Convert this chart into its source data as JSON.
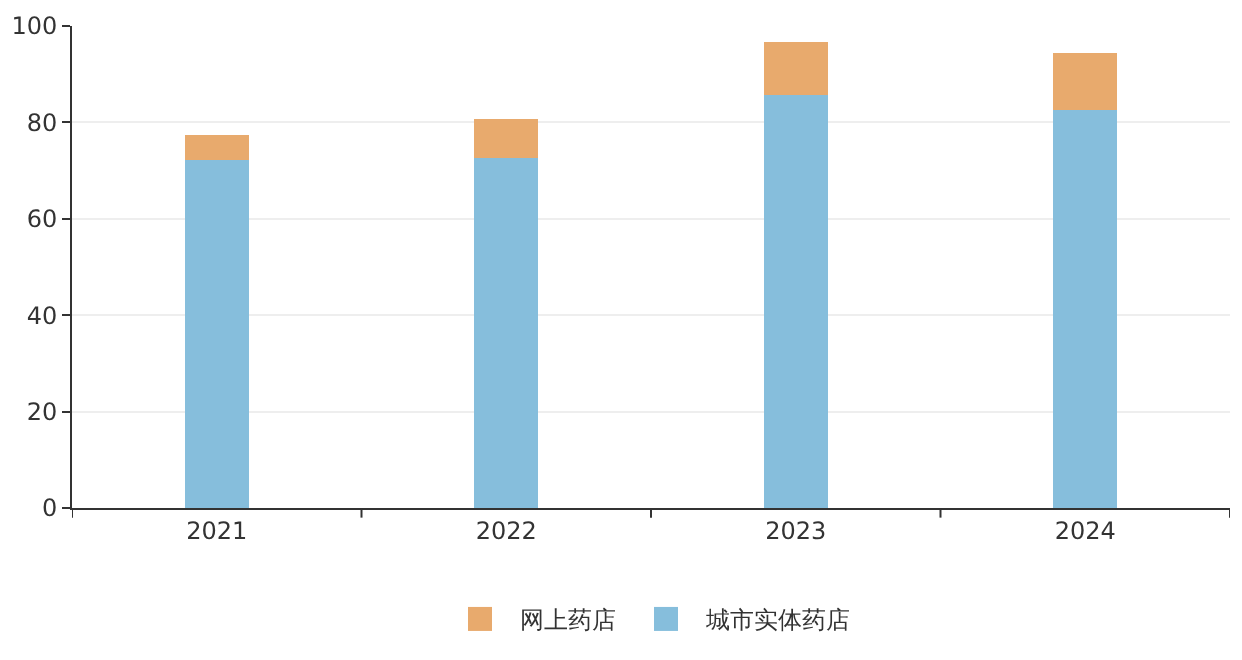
{
  "chart_data": {
    "type": "bar",
    "stacked": true,
    "categories": [
      "2021",
      "2022",
      "2023",
      "2024"
    ],
    "series": [
      {
        "name": "城市实体药店",
        "color": "#86bedc",
        "values": [
          72.2,
          72.6,
          85.6,
          82.5
        ]
      },
      {
        "name": "网上药店",
        "color": "#e8aa6d",
        "values": [
          5.2,
          8.2,
          11.1,
          11.9
        ]
      }
    ],
    "ylim": [
      0,
      100
    ],
    "yticks": [
      0,
      20,
      40,
      60,
      80,
      100
    ],
    "grid": "y",
    "legend": "bottom"
  }
}
